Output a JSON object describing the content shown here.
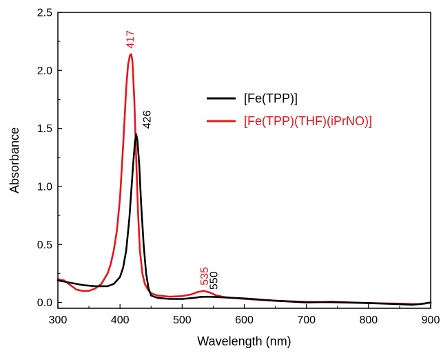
{
  "chart_data": {
    "type": "line",
    "title": "",
    "xlabel": "Wavelength (nm)",
    "ylabel": "Absorbance",
    "xlim": [
      300,
      900
    ],
    "ylim": [
      -0.05,
      2.5
    ],
    "xticks": [
      300,
      400,
      500,
      600,
      700,
      800,
      900
    ],
    "yticks": [
      "0.0",
      "0.5",
      "1.0",
      "1.5",
      "2.0",
      "2.5"
    ],
    "legend_position": "right",
    "grid": false,
    "series": [
      {
        "name": "[Fe(TPP)]",
        "color": "#000000",
        "x": [
          300,
          320,
          340,
          360,
          380,
          390,
          400,
          405,
          410,
          415,
          418,
          421,
          424,
          426,
          428,
          431,
          434,
          438,
          442,
          446,
          450,
          460,
          470,
          480,
          490,
          500,
          510,
          520,
          530,
          540,
          550,
          560,
          580,
          600,
          650,
          700,
          740,
          800,
          850,
          870,
          890,
          900
        ],
        "y": [
          0.19,
          0.17,
          0.15,
          0.14,
          0.14,
          0.16,
          0.22,
          0.3,
          0.45,
          0.72,
          0.95,
          1.18,
          1.38,
          1.45,
          1.4,
          1.18,
          0.85,
          0.5,
          0.25,
          0.12,
          0.06,
          0.04,
          0.035,
          0.03,
          0.03,
          0.03,
          0.035,
          0.04,
          0.048,
          0.05,
          0.048,
          0.045,
          0.04,
          0.035,
          0.015,
          0.0,
          0.005,
          -0.005,
          -0.015,
          -0.02,
          -0.01,
          0.0
        ]
      },
      {
        "name": "[Fe(TPP)(THF)(iPrNO)]",
        "color": "#e8141b",
        "x": [
          300,
          310,
          320,
          330,
          340,
          350,
          360,
          370,
          380,
          385,
          390,
          395,
          400,
          405,
          410,
          413,
          416,
          418,
          420,
          423,
          426,
          429,
          432,
          436,
          440,
          445,
          450,
          460,
          480,
          500,
          515,
          525,
          535,
          545,
          555,
          570,
          600,
          650,
          700,
          750,
          800,
          850,
          880,
          900
        ],
        "y": [
          0.2,
          0.19,
          0.15,
          0.11,
          0.1,
          0.1,
          0.12,
          0.16,
          0.25,
          0.33,
          0.45,
          0.62,
          0.9,
          1.35,
          1.85,
          2.05,
          2.13,
          2.14,
          2.08,
          1.75,
          1.25,
          0.78,
          0.45,
          0.25,
          0.16,
          0.11,
          0.08,
          0.06,
          0.05,
          0.055,
          0.07,
          0.09,
          0.1,
          0.085,
          0.06,
          0.045,
          0.03,
          0.015,
          0.005,
          0.0,
          -0.005,
          -0.01,
          -0.015,
          0.0
        ]
      }
    ],
    "annotations": [
      {
        "text": "417",
        "series": 1,
        "x": 417,
        "y": 2.14,
        "color": "#e8141b"
      },
      {
        "text": "426",
        "series": 0,
        "x": 426,
        "y": 1.45,
        "color": "#000000"
      },
      {
        "text": "535",
        "series": 1,
        "x": 535,
        "y": 0.1,
        "color": "#e8141b"
      },
      {
        "text": "550",
        "series": 0,
        "x": 550,
        "y": 0.05,
        "color": "#000000"
      }
    ]
  }
}
